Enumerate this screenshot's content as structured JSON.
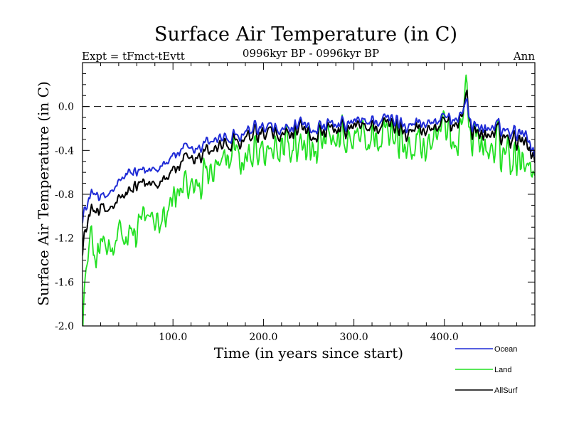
{
  "chart_data": {
    "type": "line",
    "title": "Surface Air Temperature (in C)",
    "subtitle": "0996kyr BP - 0996kyr BP",
    "left_label": "Expt = tFmct-tEvtt",
    "right_label": "Ann",
    "xlabel": "Time (in years since start)",
    "ylabel": "Surface Air Temperature (in C)",
    "xlim": [
      0,
      500
    ],
    "ylim": [
      -2.0,
      0.4
    ],
    "x_ticks": [
      100,
      200,
      300,
      400
    ],
    "x_tick_labels": [
      "100.0",
      "200.0",
      "300.0",
      "400.0"
    ],
    "y_ticks": [
      -2.0,
      -1.6,
      -1.2,
      -0.8,
      -0.4,
      0.0
    ],
    "y_tick_labels": [
      "-2.0",
      "-1.6",
      "-1.2",
      "-0.8",
      "-0.4",
      "0.0"
    ],
    "reference_line": 0.0,
    "legend_position": "bottom-right",
    "series": [
      {
        "name": "Ocean",
        "color": "#1f2bd6",
        "anchors_x": [
          0,
          5,
          10,
          15,
          20,
          30,
          40,
          50,
          60,
          70,
          80,
          90,
          100,
          110,
          120,
          130,
          140,
          150,
          160,
          170,
          180,
          190,
          200,
          220,
          240,
          260,
          280,
          300,
          320,
          340,
          360,
          380,
          400,
          410,
          420,
          425,
          430,
          440,
          460,
          480,
          490,
          500
        ],
        "anchors_y": [
          -0.98,
          -0.92,
          -0.8,
          -0.75,
          -0.85,
          -0.8,
          -0.72,
          -0.6,
          -0.62,
          -0.6,
          -0.55,
          -0.5,
          -0.45,
          -0.4,
          -0.42,
          -0.38,
          -0.3,
          -0.28,
          -0.3,
          -0.3,
          -0.25,
          -0.22,
          -0.2,
          -0.22,
          -0.18,
          -0.2,
          -0.18,
          -0.15,
          -0.12,
          -0.12,
          -0.15,
          -0.15,
          -0.12,
          -0.1,
          -0.05,
          0.05,
          -0.15,
          -0.2,
          -0.2,
          -0.22,
          -0.22,
          -0.45
        ],
        "noise": 0.13
      },
      {
        "name": "Land",
        "color": "#22e022",
        "anchors_x": [
          0,
          5,
          10,
          15,
          20,
          30,
          40,
          50,
          60,
          70,
          80,
          90,
          100,
          110,
          120,
          130,
          140,
          150,
          160,
          170,
          180,
          190,
          200,
          220,
          240,
          260,
          280,
          300,
          320,
          340,
          360,
          380,
          400,
          410,
          420,
          425,
          430,
          440,
          460,
          480,
          490,
          500
        ],
        "anchors_y": [
          -1.85,
          -1.45,
          -1.25,
          -1.3,
          -1.3,
          -1.35,
          -1.25,
          -1.2,
          -1.15,
          -1.0,
          -0.95,
          -0.9,
          -0.85,
          -0.8,
          -0.75,
          -0.65,
          -0.55,
          -0.5,
          -0.5,
          -0.5,
          -0.45,
          -0.42,
          -0.4,
          -0.4,
          -0.35,
          -0.4,
          -0.35,
          -0.32,
          -0.28,
          -0.3,
          -0.32,
          -0.35,
          -0.3,
          -0.25,
          -0.1,
          0.25,
          -0.3,
          -0.38,
          -0.38,
          -0.4,
          -0.42,
          -0.6
        ],
        "noise": 0.36
      },
      {
        "name": "AllSurf",
        "color": "#000000",
        "anchors_x": [
          0,
          5,
          10,
          15,
          20,
          30,
          40,
          50,
          60,
          70,
          80,
          90,
          100,
          110,
          120,
          130,
          140,
          150,
          160,
          170,
          180,
          190,
          200,
          220,
          240,
          260,
          280,
          300,
          320,
          340,
          360,
          380,
          400,
          410,
          420,
          425,
          430,
          440,
          460,
          480,
          490,
          500
        ],
        "anchors_y": [
          -1.25,
          -1.1,
          -0.95,
          -0.9,
          -0.95,
          -0.95,
          -0.88,
          -0.78,
          -0.75,
          -0.72,
          -0.68,
          -0.63,
          -0.58,
          -0.52,
          -0.52,
          -0.46,
          -0.38,
          -0.35,
          -0.36,
          -0.36,
          -0.31,
          -0.28,
          -0.26,
          -0.27,
          -0.23,
          -0.26,
          -0.23,
          -0.2,
          -0.17,
          -0.17,
          -0.2,
          -0.21,
          -0.17,
          -0.14,
          -0.07,
          0.12,
          -0.2,
          -0.26,
          -0.26,
          -0.28,
          -0.28,
          -0.5
        ],
        "noise": 0.17
      }
    ]
  }
}
